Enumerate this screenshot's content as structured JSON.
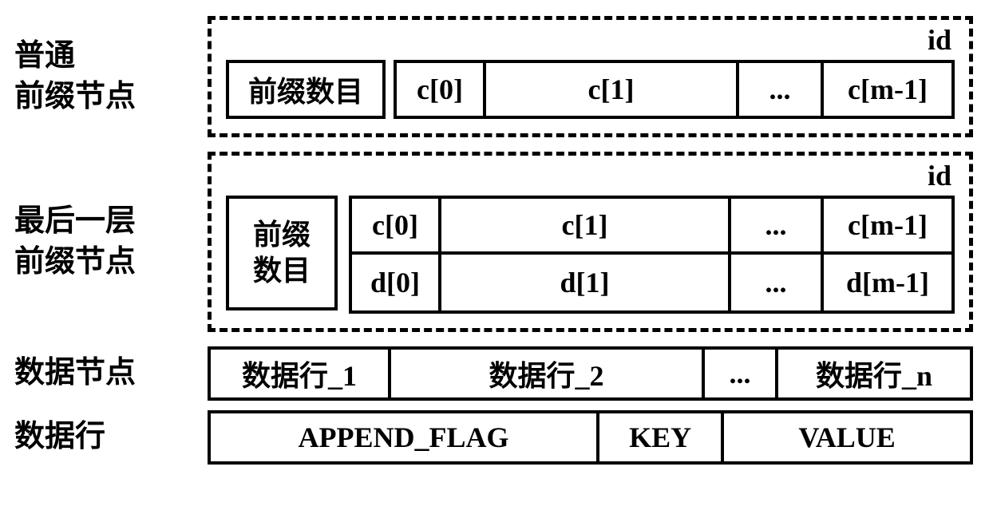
{
  "rows": {
    "normalPrefix": {
      "label": "普通\n前缀节点",
      "idLabel": "id",
      "cells": [
        "前缀数目",
        "c[0]",
        "c[1]",
        "...",
        "c[m-1]"
      ]
    },
    "lastLayerPrefix": {
      "label": "最后一层\n前缀节点",
      "idLabel": "id",
      "tallCell": "前缀\n数目",
      "topCells": [
        "c[0]",
        "c[1]",
        "...",
        "c[m-1]"
      ],
      "botCells": [
        "d[0]",
        "d[1]",
        "...",
        "d[m-1]"
      ]
    },
    "dataNode": {
      "label": "数据节点",
      "cells": [
        "数据行_1",
        "数据行_2",
        "...",
        "数据行_n"
      ]
    },
    "dataRow": {
      "label": "数据行",
      "cells": [
        "APPEND_FLAG",
        "KEY",
        "VALUE"
      ]
    }
  },
  "style": {
    "background": "#ffffff",
    "stroke": "#000000",
    "borderWidth": 4,
    "dashedBorderWidth": 5,
    "labelFontSize": 38,
    "cellFontSize": 36,
    "cellHeight": 74,
    "plainCellHeight": 68,
    "tallCellHeight": 144
  }
}
